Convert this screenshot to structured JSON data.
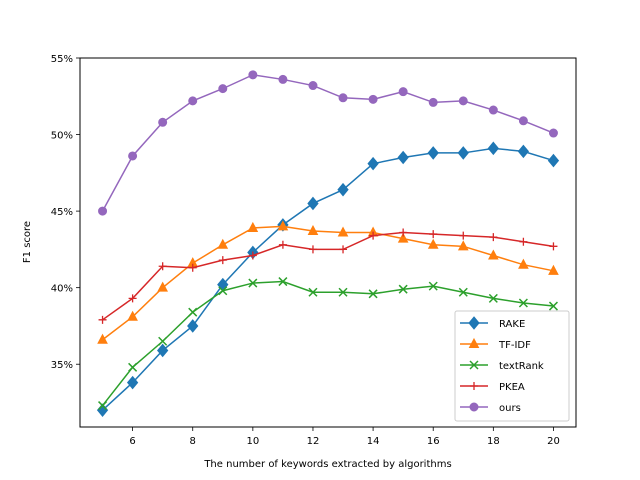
{
  "chart_data": {
    "type": "line",
    "xlabel": "The number of keywords extracted by algorithms",
    "ylabel": "F1 score",
    "x": [
      5,
      6,
      7,
      8,
      9,
      10,
      11,
      12,
      13,
      14,
      15,
      16,
      17,
      18,
      19,
      20
    ],
    "xlim": [
      4.25,
      20.75
    ],
    "ylim": [
      30.9,
      55.0
    ],
    "xticks": [
      6,
      8,
      10,
      12,
      14,
      16,
      18,
      20
    ],
    "yticks": [
      35,
      40,
      45,
      50,
      55
    ],
    "ytick_labels": [
      "35%",
      "40%",
      "45%",
      "50%",
      "55%"
    ],
    "legend_position": "lower-right",
    "grid": false,
    "series": [
      {
        "name": "RAKE",
        "color": "#1f77b4",
        "marker": "diamond",
        "values": [
          32.0,
          33.8,
          35.9,
          37.5,
          40.2,
          42.3,
          44.1,
          45.5,
          46.4,
          48.1,
          48.5,
          48.8,
          48.8,
          49.1,
          48.9,
          48.3
        ]
      },
      {
        "name": "TF-IDF",
        "color": "#ff7f0e",
        "marker": "triangle",
        "values": [
          36.6,
          38.1,
          40.0,
          41.6,
          42.8,
          43.9,
          44.0,
          43.7,
          43.6,
          43.6,
          43.2,
          42.8,
          42.7,
          42.1,
          41.5,
          41.1
        ]
      },
      {
        "name": "textRank",
        "color": "#2ca02c",
        "marker": "x",
        "values": [
          32.3,
          34.8,
          36.5,
          38.4,
          39.8,
          40.3,
          40.4,
          39.7,
          39.7,
          39.6,
          39.9,
          40.1,
          39.7,
          39.3,
          39.0,
          38.8
        ]
      },
      {
        "name": "PKEA",
        "color": "#d62728",
        "marker": "plus",
        "values": [
          37.9,
          39.3,
          41.4,
          41.3,
          41.8,
          42.1,
          42.8,
          42.5,
          42.5,
          43.4,
          43.6,
          43.5,
          43.4,
          43.3,
          43.0,
          42.7
        ]
      },
      {
        "name": "ours",
        "color": "#9467bd",
        "marker": "circle",
        "values": [
          45.0,
          48.6,
          50.8,
          52.2,
          53.0,
          53.9,
          53.6,
          53.2,
          52.4,
          52.3,
          52.8,
          52.1,
          52.2,
          51.6,
          50.9,
          50.1
        ]
      }
    ]
  }
}
